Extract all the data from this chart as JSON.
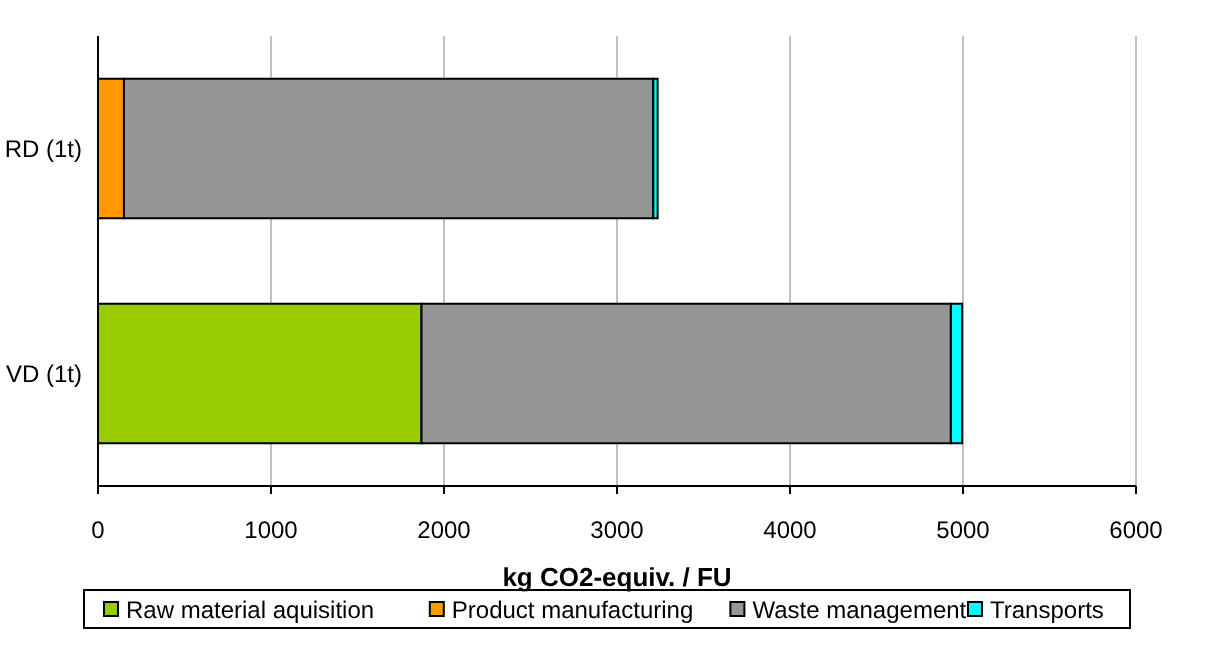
{
  "chart_data": {
    "type": "bar",
    "orientation": "horizontal",
    "stacked": true,
    "categories": [
      "RD (1t)",
      "VD (1t)"
    ],
    "series": [
      {
        "name": "Raw material aquisition",
        "color": "#99cc00",
        "values": [
          0,
          1870
        ]
      },
      {
        "name": "Product manufacturing",
        "color": "#ff9900",
        "values": [
          150,
          0
        ]
      },
      {
        "name": "Waste management",
        "color": "#969696",
        "values": [
          3060,
          3060
        ]
      },
      {
        "name": "Transports",
        "color": "#00ffff",
        "values": [
          25,
          65
        ]
      }
    ],
    "xlabel": "kg CO2-equiv. / FU",
    "xlim": [
      0,
      6000
    ],
    "xticks": [
      0,
      1000,
      2000,
      3000,
      4000,
      5000,
      6000
    ],
    "grid": "x",
    "legend": "bottom"
  }
}
